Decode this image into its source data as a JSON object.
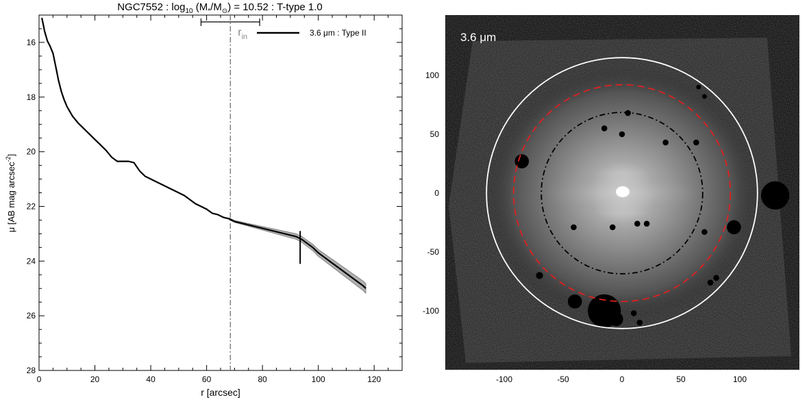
{
  "chart_data": [
    {
      "type": "line",
      "title_parts": {
        "galaxy": "NGC7552",
        "sep1": " : log",
        "log_sub": "10",
        "mass_open": " (M",
        "mass_sub": "*",
        "mass_div": "/M",
        "sun_sub": "⊙",
        "mass_close": ") = 10.52 : T-type 1.0"
      },
      "xlabel": "r [arcsec]",
      "ylabel": {
        "main": "μ [AB mag arcsec",
        "sup": "-2",
        "close": "]"
      },
      "xlim": [
        0,
        130
      ],
      "ylim": [
        28,
        15
      ],
      "x_ticks": [
        0,
        20,
        40,
        60,
        80,
        100,
        120
      ],
      "y_ticks": [
        16,
        18,
        20,
        22,
        24,
        26,
        28
      ],
      "legend": {
        "label": "3.6 μm : Type II",
        "position": "top-right"
      },
      "r_in": {
        "label": "r",
        "sub": "in",
        "value": 68.5,
        "range": [
          58,
          79
        ]
      },
      "break_marker": {
        "r": 93.5,
        "mu": 23.5
      },
      "series": [
        {
          "name": "3.6 μm : Type II",
          "x": [
            1,
            2,
            3,
            4,
            5,
            6,
            7,
            8,
            9,
            10,
            12,
            14,
            16,
            18,
            20,
            22,
            24,
            26,
            28,
            30,
            32,
            34,
            36,
            38,
            40,
            42,
            44,
            46,
            48,
            50,
            52,
            54,
            56,
            58,
            60,
            62,
            64,
            66,
            68,
            70,
            72,
            74,
            76,
            78,
            80,
            82,
            84,
            86,
            88,
            90,
            92,
            94,
            96,
            98,
            100,
            102,
            104,
            106,
            108,
            110,
            112,
            114,
            116,
            117
          ],
          "y": [
            15.1,
            15.6,
            15.95,
            16.15,
            16.4,
            16.9,
            17.4,
            17.8,
            18.1,
            18.35,
            18.7,
            18.95,
            19.15,
            19.35,
            19.55,
            19.75,
            19.95,
            20.2,
            20.35,
            20.35,
            20.35,
            20.4,
            20.7,
            20.9,
            21.0,
            21.1,
            21.2,
            21.3,
            21.4,
            21.5,
            21.6,
            21.75,
            21.9,
            22.0,
            22.1,
            22.25,
            22.3,
            22.4,
            22.45,
            22.55,
            22.6,
            22.65,
            22.7,
            22.75,
            22.8,
            22.85,
            22.9,
            22.95,
            23.0,
            23.05,
            23.1,
            23.2,
            23.35,
            23.5,
            23.7,
            23.85,
            24.0,
            24.15,
            24.3,
            24.45,
            24.6,
            24.75,
            24.9,
            25.0
          ]
        }
      ]
    },
    {
      "type": "heatmap",
      "label": "3.6 μm",
      "xlim": [
        -150,
        150
      ],
      "ylim": [
        -150,
        150
      ],
      "x_ticks": [
        -100,
        -50,
        0,
        50,
        100
      ],
      "y_ticks": [
        -100,
        -50,
        0,
        50,
        100
      ],
      "ellipses": [
        {
          "name": "outer",
          "color": "#ffffff",
          "style": "solid",
          "rx": 115,
          "ry": 115
        },
        {
          "name": "break",
          "color": "#e02020",
          "style": "dashed",
          "rx": 92,
          "ry": 92
        },
        {
          "name": "inner",
          "color": "#000000",
          "style": "dashdot",
          "rx": 68.5,
          "ry": 68.5
        }
      ],
      "masks": [
        {
          "x": -85,
          "y": 27,
          "r": 6
        },
        {
          "x": 130,
          "y": -2,
          "r": 12
        },
        {
          "x": 95,
          "y": -29,
          "r": 6
        },
        {
          "x": -40,
          "y": -92,
          "r": 6
        },
        {
          "x": -15,
          "y": -100,
          "r": 14
        },
        {
          "x": -5,
          "y": -107,
          "r": 6
        },
        {
          "x": -15,
          "y": 55,
          "r": 2.5
        },
        {
          "x": 0,
          "y": 50,
          "r": 2.5
        },
        {
          "x": 5,
          "y": 68,
          "r": 2.5
        },
        {
          "x": 37,
          "y": 43,
          "r": 2.5
        },
        {
          "x": 63,
          "y": 43,
          "r": 2.5
        },
        {
          "x": -41,
          "y": -29,
          "r": 2.5
        },
        {
          "x": -8,
          "y": -29,
          "r": 2.5
        },
        {
          "x": 13,
          "y": -26,
          "r": 2.5
        },
        {
          "x": 21,
          "y": -26,
          "r": 2.5
        },
        {
          "x": 70,
          "y": -33,
          "r": 2.5
        },
        {
          "x": 80,
          "y": -72,
          "r": 2.5
        },
        {
          "x": 75,
          "y": -76,
          "r": 2.5
        },
        {
          "x": -70,
          "y": -70,
          "r": 3
        },
        {
          "x": 10,
          "y": -102,
          "r": 2.5
        },
        {
          "x": 15,
          "y": -110,
          "r": 2.5
        },
        {
          "x": 65,
          "y": 90,
          "r": 2
        },
        {
          "x": 70,
          "y": 82,
          "r": 2
        }
      ]
    }
  ]
}
